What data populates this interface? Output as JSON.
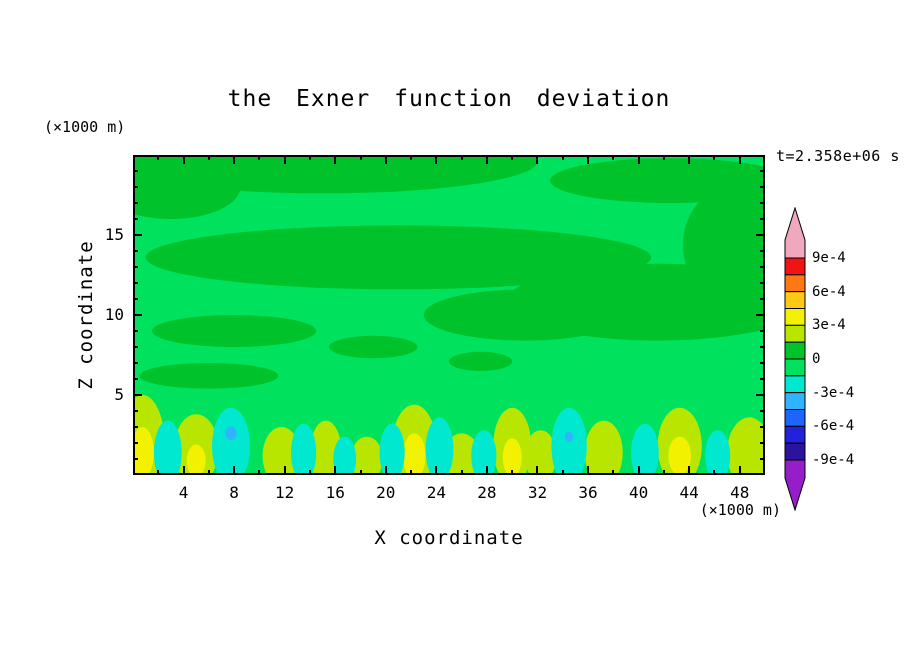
{
  "title": "the Exner function deviation",
  "time_label": "t=2.358e+06 s",
  "axes": {
    "x_label": "X coordinate",
    "x_unit": "(×1000 m)",
    "y_label": "Z coordinate",
    "y_unit": "(×1000 m)",
    "x_range": [
      0,
      50
    ],
    "y_range": [
      0,
      20
    ],
    "x_major_ticks": [
      4,
      8,
      12,
      16,
      20,
      24,
      28,
      32,
      36,
      40,
      44,
      48
    ],
    "x_minor_ticks": [
      2,
      6,
      10,
      14,
      18,
      22,
      26,
      30,
      34,
      38,
      42,
      46
    ],
    "y_major_ticks": [
      5,
      10,
      15
    ],
    "y_minor_ticks": [
      1,
      2,
      3,
      4,
      6,
      7,
      8,
      9,
      11,
      12,
      13,
      14,
      16,
      17,
      18,
      19
    ]
  },
  "colorbar": {
    "labels": [
      "9e-4",
      "6e-4",
      "3e-4",
      "0",
      "-3e-4",
      "-6e-4",
      "-9e-4"
    ],
    "box_colors": [
      "#f01414",
      "#ff7814",
      "#ffc814",
      "#f2f200",
      "#b8e600",
      "#00c22a",
      "#00e25e",
      "#00e8d0",
      "#30b4ff",
      "#1e64ff",
      "#2222dc",
      "#2a149b"
    ],
    "over_color": "#f0a8be",
    "under_color": "#961ec8"
  },
  "chart_data": {
    "type": "heatmap",
    "subtype": "filled-contour",
    "title": "the Exner function deviation",
    "xlabel": "X coordinate (×1000 m)",
    "ylabel": "Z coordinate (×1000 m)",
    "xlim": [
      0,
      50
    ],
    "ylim": [
      0,
      20
    ],
    "time_annotation": "t=2.358e+06 s",
    "contour_interval": 0.00015,
    "labeled_levels": [
      0.0009,
      0.0006,
      0.0003,
      0,
      -0.0003,
      -0.0006,
      -0.0009
    ],
    "legend_position": "right",
    "grid": false,
    "background_band": {
      "band": "-1.5e-4 to 0",
      "color": "#00e25e"
    },
    "regions": [
      {
        "band": "0 to 1.5e-4",
        "color": "#00c22a",
        "cx": 0.3,
        "cy": 0.02,
        "rx": 0.34,
        "ry": 0.1
      },
      {
        "band": "0 to 1.5e-4",
        "color": "#00c22a",
        "cx": 0.06,
        "cy": 0.1,
        "rx": 0.11,
        "ry": 0.1
      },
      {
        "band": "0 to 1.5e-4",
        "color": "#00c22a",
        "cx": 0.85,
        "cy": 0.08,
        "rx": 0.19,
        "ry": 0.07
      },
      {
        "band": "0 to 1.5e-4",
        "color": "#00c22a",
        "cx": 0.42,
        "cy": 0.32,
        "rx": 0.4,
        "ry": 0.1
      },
      {
        "band": "0 to 1.5e-4",
        "color": "#00c22a",
        "cx": 0.83,
        "cy": 0.46,
        "rx": 0.24,
        "ry": 0.12
      },
      {
        "band": "0 to 1.5e-4",
        "color": "#00c22a",
        "cx": 0.97,
        "cy": 0.28,
        "rx": 0.1,
        "ry": 0.2
      },
      {
        "band": "0 to 1.5e-4",
        "color": "#00c22a",
        "cx": 0.62,
        "cy": 0.5,
        "rx": 0.16,
        "ry": 0.08
      },
      {
        "band": "0 to 1.5e-4",
        "color": "#00c22a",
        "cx": 0.16,
        "cy": 0.55,
        "rx": 0.13,
        "ry": 0.05
      },
      {
        "band": "0 to 1.5e-4",
        "color": "#00c22a",
        "cx": 0.12,
        "cy": 0.69,
        "rx": 0.11,
        "ry": 0.04
      },
      {
        "band": "0 to 1.5e-4",
        "color": "#00c22a",
        "cx": 0.38,
        "cy": 0.6,
        "rx": 0.07,
        "ry": 0.035
      },
      {
        "band": "0 to 1.5e-4",
        "color": "#00c22a",
        "cx": 0.55,
        "cy": 0.645,
        "rx": 0.05,
        "ry": 0.03
      },
      {
        "band": "1.5e-4 to 3e-4",
        "color": "#b8e600",
        "cx": 0.015,
        "cy": 0.9,
        "rx": 0.035,
        "ry": 0.15
      },
      {
        "band": "1.5e-4 to 3e-4",
        "color": "#b8e600",
        "cx": 0.1,
        "cy": 0.92,
        "rx": 0.035,
        "ry": 0.11
      },
      {
        "band": "1.5e-4 to 3e-4",
        "color": "#b8e600",
        "cx": 0.235,
        "cy": 0.94,
        "rx": 0.03,
        "ry": 0.09
      },
      {
        "band": "1.5e-4 to 3e-4",
        "color": "#b8e600",
        "cx": 0.305,
        "cy": 0.93,
        "rx": 0.025,
        "ry": 0.1
      },
      {
        "band": "1.5e-4 to 3e-4",
        "color": "#b8e600",
        "cx": 0.37,
        "cy": 0.95,
        "rx": 0.025,
        "ry": 0.07
      },
      {
        "band": "1.5e-4 to 3e-4",
        "color": "#b8e600",
        "cx": 0.445,
        "cy": 0.91,
        "rx": 0.035,
        "ry": 0.13
      },
      {
        "band": "1.5e-4 to 3e-4",
        "color": "#b8e600",
        "cx": 0.52,
        "cy": 0.95,
        "rx": 0.03,
        "ry": 0.08
      },
      {
        "band": "1.5e-4 to 3e-4",
        "color": "#b8e600",
        "cx": 0.6,
        "cy": 0.91,
        "rx": 0.03,
        "ry": 0.12
      },
      {
        "band": "1.5e-4 to 3e-4",
        "color": "#b8e600",
        "cx": 0.645,
        "cy": 0.94,
        "rx": 0.025,
        "ry": 0.08
      },
      {
        "band": "1.5e-4 to 3e-4",
        "color": "#b8e600",
        "cx": 0.745,
        "cy": 0.93,
        "rx": 0.03,
        "ry": 0.1
      },
      {
        "band": "1.5e-4 to 3e-4",
        "color": "#b8e600",
        "cx": 0.865,
        "cy": 0.91,
        "rx": 0.035,
        "ry": 0.12
      },
      {
        "band": "1.5e-4 to 3e-4",
        "color": "#b8e600",
        "cx": 0.975,
        "cy": 0.93,
        "rx": 0.035,
        "ry": 0.11
      },
      {
        "band": "3e-4 to 4.5e-4",
        "color": "#f2f200",
        "cx": 0.015,
        "cy": 0.93,
        "rx": 0.018,
        "ry": 0.08
      },
      {
        "band": "3e-4 to 4.5e-4",
        "color": "#f2f200",
        "cx": 0.445,
        "cy": 0.94,
        "rx": 0.018,
        "ry": 0.07
      },
      {
        "band": "3e-4 to 4.5e-4",
        "color": "#f2f200",
        "cx": 0.6,
        "cy": 0.945,
        "rx": 0.015,
        "ry": 0.06
      },
      {
        "band": "3e-4 to 4.5e-4",
        "color": "#f2f200",
        "cx": 0.865,
        "cy": 0.94,
        "rx": 0.018,
        "ry": 0.06
      },
      {
        "band": "3e-4 to 4.5e-4",
        "color": "#f2f200",
        "cx": 0.1,
        "cy": 0.955,
        "rx": 0.015,
        "ry": 0.05
      },
      {
        "band": "-3e-4 to -1.5e-4",
        "color": "#00e8d0",
        "cx": 0.055,
        "cy": 0.93,
        "rx": 0.022,
        "ry": 0.1
      },
      {
        "band": "-3e-4 to -1.5e-4",
        "color": "#00e8d0",
        "cx": 0.155,
        "cy": 0.91,
        "rx": 0.03,
        "ry": 0.12
      },
      {
        "band": "-3e-4 to -1.5e-4",
        "color": "#00e8d0",
        "cx": 0.27,
        "cy": 0.93,
        "rx": 0.02,
        "ry": 0.09
      },
      {
        "band": "-3e-4 to -1.5e-4",
        "color": "#00e8d0",
        "cx": 0.335,
        "cy": 0.95,
        "rx": 0.018,
        "ry": 0.07
      },
      {
        "band": "-3e-4 to -1.5e-4",
        "color": "#00e8d0",
        "cx": 0.41,
        "cy": 0.93,
        "rx": 0.02,
        "ry": 0.09
      },
      {
        "band": "-3e-4 to -1.5e-4",
        "color": "#00e8d0",
        "cx": 0.485,
        "cy": 0.92,
        "rx": 0.022,
        "ry": 0.1
      },
      {
        "band": "-3e-4 to -1.5e-4",
        "color": "#00e8d0",
        "cx": 0.555,
        "cy": 0.94,
        "rx": 0.02,
        "ry": 0.08
      },
      {
        "band": "-3e-4 to -1.5e-4",
        "color": "#00e8d0",
        "cx": 0.69,
        "cy": 0.91,
        "rx": 0.028,
        "ry": 0.12
      },
      {
        "band": "-3e-4 to -1.5e-4",
        "color": "#00e8d0",
        "cx": 0.81,
        "cy": 0.93,
        "rx": 0.022,
        "ry": 0.09
      },
      {
        "band": "-3e-4 to -1.5e-4",
        "color": "#00e8d0",
        "cx": 0.925,
        "cy": 0.94,
        "rx": 0.02,
        "ry": 0.08
      },
      {
        "band": "-4.5e-4 to -3e-4",
        "color": "#30b4ff",
        "cx": 0.155,
        "cy": 0.87,
        "rx": 0.009,
        "ry": 0.022
      },
      {
        "band": "-4.5e-4 to -3e-4",
        "color": "#30b4ff",
        "cx": 0.69,
        "cy": 0.88,
        "rx": 0.007,
        "ry": 0.016
      }
    ]
  }
}
